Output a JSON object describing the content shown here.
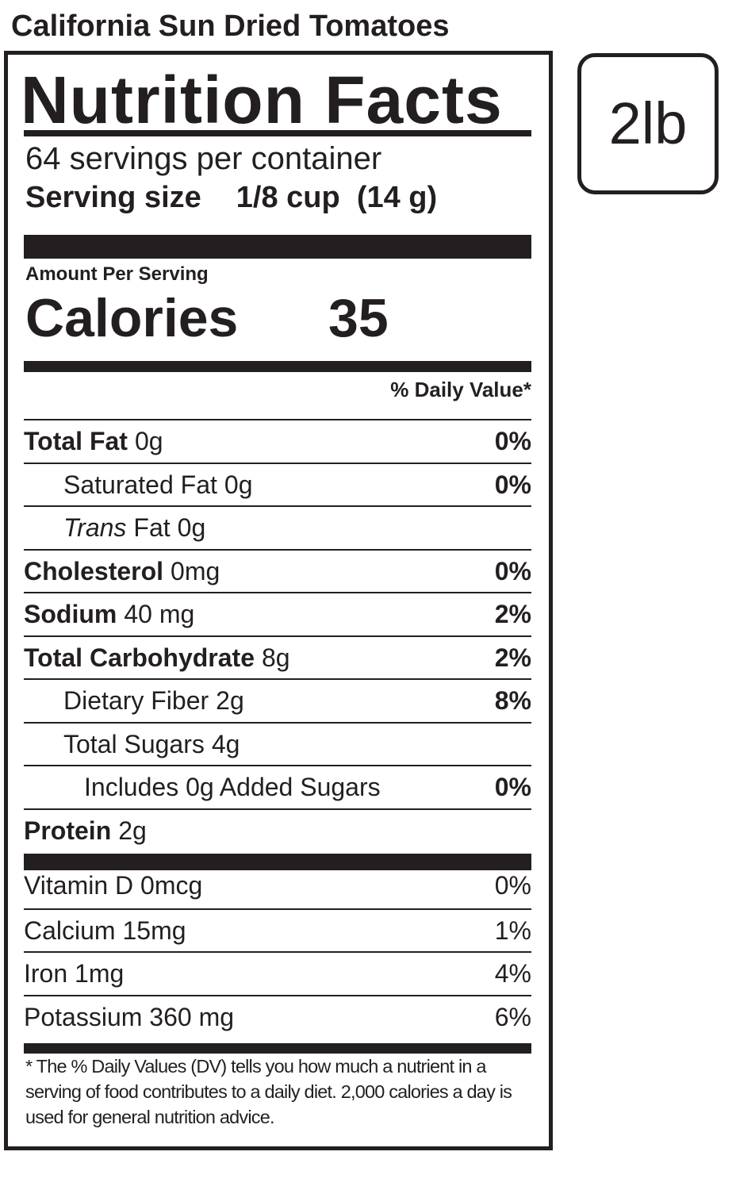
{
  "product": "California Sun Dried Tomatoes",
  "badge": "2lb",
  "label": {
    "title": "Nutrition Facts",
    "servings": "64 servings per container",
    "serving_size": {
      "label": "Serving size",
      "value": "1/8 cup  (14 g)"
    },
    "amount_per_serving": "Amount Per Serving",
    "calories": {
      "label": "Calories",
      "value": "35"
    },
    "dv_header": "% Daily Value*",
    "nutrients": [
      {
        "name": "Total Fat",
        "amount": "0g",
        "dv": "0%"
      },
      {
        "name": "Saturated Fat",
        "amount": "0g",
        "dv": "0%"
      },
      {
        "name_italic": "Trans",
        "name": "Fat",
        "amount": "0g"
      },
      {
        "name": "Cholesterol",
        "amount": "0mg",
        "dv": "0%"
      },
      {
        "name": "Sodium",
        "amount": "40 mg",
        "dv": "2%"
      },
      {
        "name": "Total Carbohydrate",
        "amount": "8g",
        "dv": "2%"
      },
      {
        "name": "Dietary Fiber",
        "amount": "2g",
        "dv": "8%"
      },
      {
        "name": "Total Sugars",
        "amount": "4g"
      },
      {
        "name": "Includes 0g Added Sugars",
        "dv": "0%"
      },
      {
        "name": "Protein",
        "amount": "2g"
      }
    ],
    "vitamins": [
      {
        "name": "Vitamin D 0mcg",
        "dv": "0%"
      },
      {
        "name": "Calcium 15mg",
        "dv": "1%"
      },
      {
        "name": "Iron 1mg",
        "dv": "4%"
      },
      {
        "name": "Potassium 360 mg",
        "dv": "6%"
      }
    ],
    "footnote": "* The % Daily Values (DV) tells you how much a nutrient in a serving of food contributes to a daily diet. 2,000 calories a day is used for general nutrition advice."
  }
}
